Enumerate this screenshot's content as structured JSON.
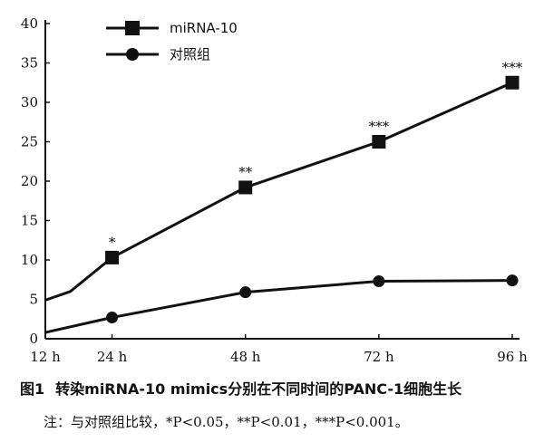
{
  "chart_data": {
    "type": "line",
    "categories": [
      "12 h",
      "24 h",
      "48 h",
      "72 h",
      "96 h"
    ],
    "ylim": [
      0,
      40
    ],
    "yticks": [
      0,
      5,
      10,
      15,
      20,
      25,
      30,
      35,
      40
    ],
    "legend_position": "top-left",
    "grid": false,
    "series": [
      {
        "name": "miRNA-10",
        "marker": "square",
        "x": [
          12,
          16.5,
          24,
          48,
          72,
          96
        ],
        "y": [
          4.9,
          6.0,
          10.3,
          19.2,
          25.0,
          32.5
        ],
        "marked": [
          false,
          false,
          true,
          true,
          true,
          true
        ],
        "labels": [
          "",
          "",
          "*",
          "**",
          "***",
          "***"
        ]
      },
      {
        "name": "对照组",
        "marker": "circle",
        "x": [
          12,
          24,
          48,
          72,
          96
        ],
        "y": [
          0.8,
          2.7,
          5.9,
          7.3,
          7.4
        ],
        "marked": [
          false,
          true,
          true,
          true,
          true
        ],
        "labels": [
          "",
          "",
          "",
          "",
          ""
        ]
      }
    ]
  },
  "figure": {
    "label": "图1",
    "caption": "转染miRNA-10 mimics分别在不同时间的PANC-1细胞生长",
    "note": "注：与对照组比较，*P<0.05，**P<0.01，***P<0.001。"
  }
}
